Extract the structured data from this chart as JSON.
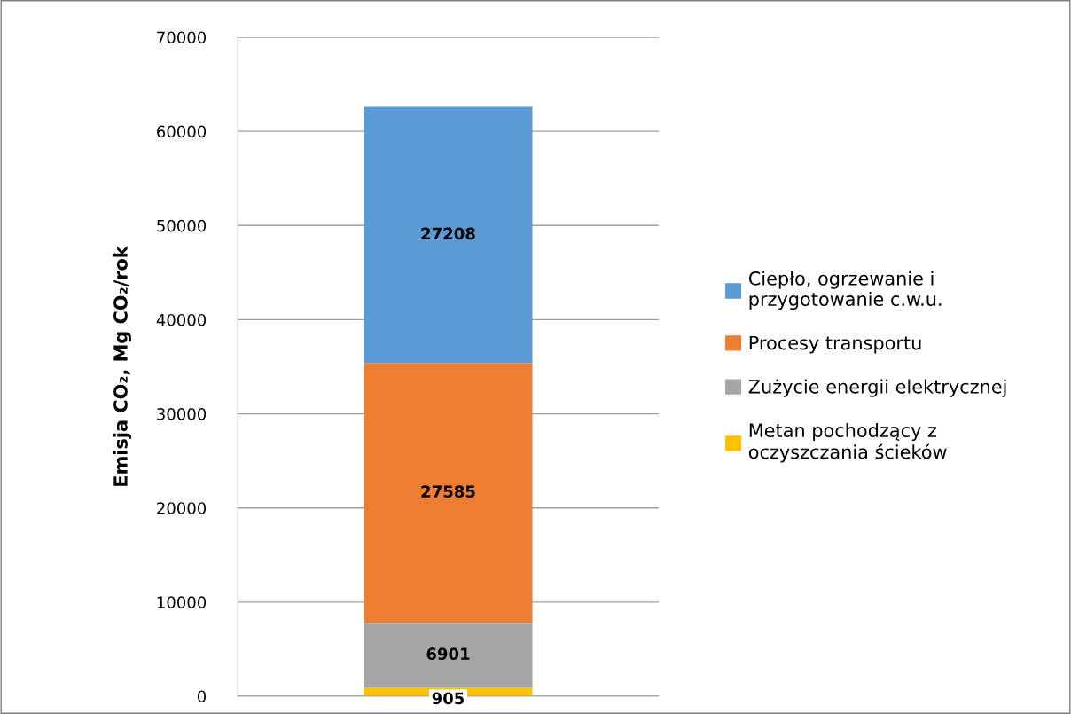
{
  "chart_data": {
    "type": "bar",
    "stacked": true,
    "categories": [
      null
    ],
    "ylabel": "Emisja CO₂, Mg CO₂/rok",
    "ylim": [
      0,
      70000
    ],
    "yticks": [
      0,
      10000,
      20000,
      30000,
      40000,
      50000,
      60000,
      70000
    ],
    "grid": "y",
    "legend": "right",
    "data_labels": true,
    "series": [
      {
        "name": "Metan pochodzący z\noczyszczania ścieków",
        "color": "#ffc000",
        "values": [
          905
        ]
      },
      {
        "name": "Zużycie energii elektrycznej",
        "color": "#a5a5a5",
        "values": [
          6901
        ]
      },
      {
        "name": "Procesy transportu",
        "color": "#ed7d31",
        "values": [
          27585
        ]
      },
      {
        "name": "Ciepło, ogrzewanie i\nprzygotowanie c.w.u.",
        "color": "#5b9bd5",
        "values": [
          27208
        ]
      }
    ]
  }
}
